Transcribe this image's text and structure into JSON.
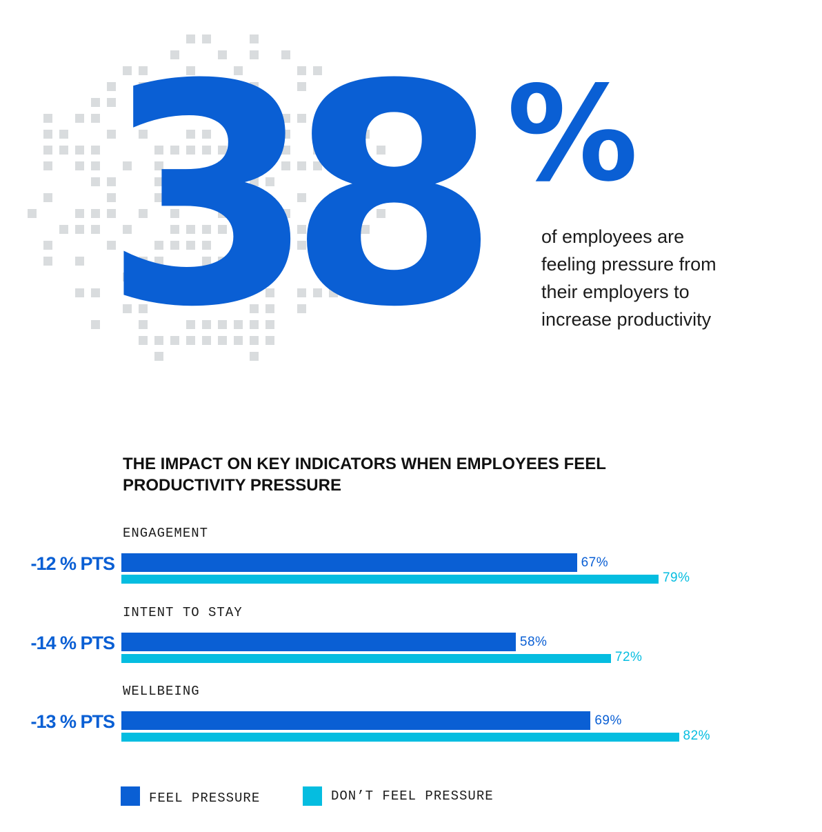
{
  "hero": {
    "number": "38",
    "percent_sign": "%",
    "caption_lines": [
      "of employees are",
      "feeling pressure from",
      "their employers to",
      "increase productivity"
    ]
  },
  "colors": {
    "feel_pressure": "#0a5fd4",
    "dont_feel_pressure": "#05bde0",
    "pixel_pattern": "#d9dcde",
    "text": "#1b1b1b"
  },
  "chart_data": {
    "type": "bar",
    "orientation": "horizontal",
    "title": "THE IMPACT ON KEY INDICATORS WHEN EMPLOYEES FEEL PRODUCTIVITY PRESSURE",
    "categories": [
      "ENGAGEMENT",
      "INTENT TO STAY",
      "WELLBEING"
    ],
    "deltas": [
      "-12 % PTS",
      "-14 % PTS",
      "-13 % PTS"
    ],
    "series": [
      {
        "name": "FEEL PRESSURE",
        "values": [
          67,
          58,
          69
        ],
        "labels": [
          "67%",
          "58%",
          "69%"
        ]
      },
      {
        "name": "DON’T FEEL PRESSURE",
        "values": [
          79,
          72,
          82
        ],
        "labels": [
          "79%",
          "72%",
          "82%"
        ]
      }
    ],
    "xlim": [
      0,
      100
    ],
    "grid": false,
    "legend": "bottom-left"
  }
}
